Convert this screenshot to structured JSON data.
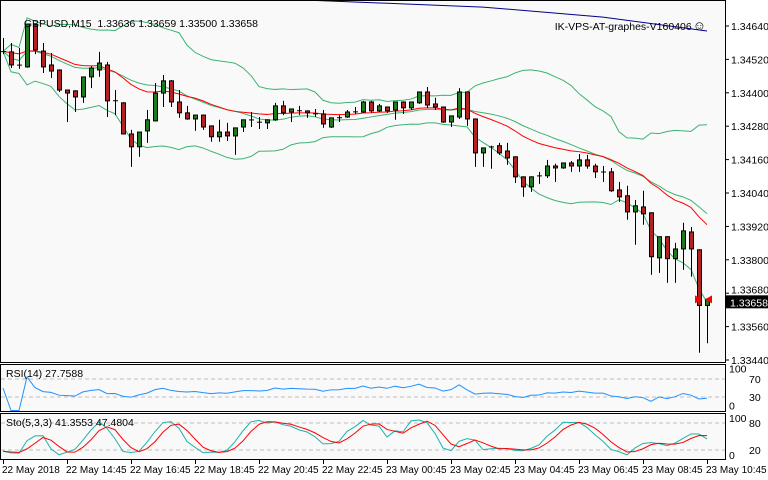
{
  "header": {
    "symbol": "GBPUSD,M15",
    "ohlc": "1.33636 1.33659 1.33500 1.33658",
    "expert": "IK-VPS-AT-graphes-V160406",
    "expert_icon": "smiley-icon"
  },
  "rsi_panel": {
    "label": "RSI(14) 27.7588",
    "levels": [
      70,
      30
    ],
    "scale_labels": [
      "100",
      "70",
      "30",
      "0"
    ]
  },
  "sto_panel": {
    "label": "Sto(5,3,3) 41.3553 47.4804",
    "levels": [
      80,
      20
    ],
    "scale_labels": [
      "100",
      "80",
      "20",
      "0"
    ]
  },
  "colors": {
    "bull": "#1f7a1f",
    "bear": "#b22222",
    "bands": "#3cb371",
    "ma": "#ff0000",
    "ma_long": "#00008b",
    "rsi": "#1e90ff",
    "sto_main": "#20b2aa",
    "sto_signal": "#ff0000",
    "background": "#f9f9f9"
  },
  "chart_data": {
    "type": "candlestick",
    "symbol": "GBPUSD",
    "timeframe": "M15",
    "start_time": "22 May 12:45",
    "interval_minutes": 15,
    "ylim": [
      1.3344,
      1.3464
    ],
    "y_ticks": [
      "1.34640",
      "1.34520",
      "1.34400",
      "1.34280",
      "1.34160",
      "1.34040",
      "1.33920",
      "1.33800",
      "1.33680",
      "1.33560",
      "1.33440"
    ],
    "last_price": "1.33658",
    "x_ticks": [
      "22 May 2018",
      "22 May 14:45",
      "22 May 16:45",
      "22 May 18:45",
      "22 May 20:45",
      "22 May 22:45",
      "23 May 00:45",
      "23 May 02:45",
      "23 May 04:45",
      "23 May 06:45",
      "23 May 08:45",
      "23 May 10:45"
    ],
    "x_tick_every_candles": 8,
    "candles_ohlc": [
      [
        1.34547,
        1.34597,
        1.34539,
        1.34549
      ],
      [
        1.34547,
        1.34579,
        1.34489,
        1.345
      ],
      [
        1.345,
        1.34561,
        1.34486,
        1.34499
      ],
      [
        1.34493,
        1.34647,
        1.3449,
        1.34647
      ],
      [
        1.34645,
        1.34647,
        1.34539,
        1.34554
      ],
      [
        1.3455,
        1.34579,
        1.34471,
        1.34493
      ],
      [
        1.345,
        1.34543,
        1.34453,
        1.34478
      ],
      [
        1.34482,
        1.34484,
        1.34403,
        1.3441
      ],
      [
        1.3441,
        1.34412,
        1.34295,
        1.34399
      ],
      [
        1.34407,
        1.34409,
        1.34331,
        1.34385
      ],
      [
        1.34385,
        1.34457,
        1.34364,
        1.34457
      ],
      [
        1.34457,
        1.34496,
        1.34417,
        1.34489
      ],
      [
        1.34482,
        1.34547,
        1.34457,
        1.34507
      ],
      [
        1.345,
        1.34511,
        1.34313,
        1.34371
      ],
      [
        1.34371,
        1.3441,
        1.3432,
        1.34372
      ],
      [
        1.34364,
        1.34366,
        1.3425,
        1.34252
      ],
      [
        1.34252,
        1.34267,
        1.34134,
        1.34206
      ],
      [
        1.34206,
        1.34259,
        1.3417,
        1.34259
      ],
      [
        1.34263,
        1.34338,
        1.3422,
        1.34303
      ],
      [
        1.34299,
        1.34435,
        1.34297,
        1.34399
      ],
      [
        1.34399,
        1.34464,
        1.34349,
        1.34443
      ],
      [
        1.34443,
        1.34446,
        1.34349,
        1.34367
      ],
      [
        1.34367,
        1.3441,
        1.3431,
        1.34328
      ],
      [
        1.34328,
        1.34353,
        1.34303,
        1.34306
      ],
      [
        1.34306,
        1.3432,
        1.34263,
        1.3432
      ],
      [
        1.3432,
        1.34322,
        1.34267,
        1.34277
      ],
      [
        1.34281,
        1.34283,
        1.34224,
        1.34242
      ],
      [
        1.34242,
        1.34303,
        1.34224,
        1.34259
      ],
      [
        1.34259,
        1.34292,
        1.34227,
        1.34245
      ],
      [
        1.34245,
        1.34274,
        1.34177,
        1.34274
      ],
      [
        1.34277,
        1.34303,
        1.34259,
        1.34303
      ],
      [
        1.34303,
        1.34331,
        1.34277,
        1.34302
      ],
      [
        1.34295,
        1.34313,
        1.3427,
        1.34294
      ],
      [
        1.34292,
        1.34305,
        1.3427,
        1.34303
      ],
      [
        1.34303,
        1.34364,
        1.34299,
        1.34353
      ],
      [
        1.34353,
        1.34371,
        1.3432,
        1.34328
      ],
      [
        1.34331,
        1.34342,
        1.34295,
        1.34342
      ],
      [
        1.34335,
        1.34353,
        1.3432,
        1.34336
      ],
      [
        1.34335,
        1.34337,
        1.3431,
        1.34328
      ],
      [
        1.34324,
        1.34342,
        1.34313,
        1.34325
      ],
      [
        1.34324,
        1.34338,
        1.34274,
        1.34288
      ],
      [
        1.34277,
        1.3431,
        1.34274,
        1.3431
      ],
      [
        1.3431,
        1.3432,
        1.34295,
        1.34311
      ],
      [
        1.34313,
        1.34338,
        1.3431,
        1.34331
      ],
      [
        1.34331,
        1.34349,
        1.34324,
        1.34332
      ],
      [
        1.34331,
        1.34371,
        1.34328,
        1.34367
      ],
      [
        1.34367,
        1.34371,
        1.34328,
        1.34335
      ],
      [
        1.34335,
        1.3436,
        1.34331,
        1.34353
      ],
      [
        1.34349,
        1.34351,
        1.34328,
        1.34335
      ],
      [
        1.34338,
        1.34367,
        1.34303,
        1.34367
      ],
      [
        1.34367,
        1.34369,
        1.34324,
        1.34346
      ],
      [
        1.34346,
        1.34367,
        1.34338,
        1.34367
      ],
      [
        1.34364,
        1.34403,
        1.3436,
        1.34403
      ],
      [
        1.34403,
        1.34421,
        1.34346,
        1.34356
      ],
      [
        1.3436,
        1.34382,
        1.34338,
        1.34349
      ],
      [
        1.34349,
        1.34351,
        1.34292,
        1.34295
      ],
      [
        1.34295,
        1.34317,
        1.34277,
        1.34317
      ],
      [
        1.34313,
        1.34417,
        1.34306,
        1.34403
      ],
      [
        1.34403,
        1.34405,
        1.34281,
        1.34306
      ],
      [
        1.34306,
        1.34308,
        1.34134,
        1.34184
      ],
      [
        1.34184,
        1.34202,
        1.34134,
        1.34202
      ],
      [
        1.34206,
        1.3421,
        1.34127,
        1.34205
      ],
      [
        1.3421,
        1.3422,
        1.34177,
        1.34184
      ],
      [
        1.34191,
        1.3422,
        1.34141,
        1.34166
      ],
      [
        1.3417,
        1.34172,
        1.34076,
        1.34098
      ],
      [
        1.34098,
        1.341,
        1.34026,
        1.34062
      ],
      [
        1.34062,
        1.341,
        1.34044,
        1.34098
      ],
      [
        1.34102,
        1.34116,
        1.34073,
        1.34101
      ],
      [
        1.34102,
        1.34159,
        1.34094,
        1.34137
      ],
      [
        1.34137,
        1.34145,
        1.3408,
        1.3413
      ],
      [
        1.3413,
        1.34148,
        1.34127,
        1.34148
      ],
      [
        1.34148,
        1.34155,
        1.34116,
        1.34137
      ],
      [
        1.34137,
        1.3418,
        1.34116,
        1.34159
      ],
      [
        1.34159,
        1.34177,
        1.34127,
        1.34137
      ],
      [
        1.34137,
        1.34145,
        1.34094,
        1.34116
      ],
      [
        1.34116,
        1.34137,
        1.3408,
        1.34115
      ],
      [
        1.34116,
        1.3413,
        1.34044,
        1.34048
      ],
      [
        1.34051,
        1.3408,
        1.34008,
        1.34026
      ],
      [
        1.3403,
        1.34066,
        1.33944,
        1.33972
      ],
      [
        1.33972,
        1.34015,
        1.33854,
        1.33994
      ],
      [
        1.3399,
        1.34048,
        1.33926,
        1.33965
      ],
      [
        1.33969,
        1.33971,
        1.33746,
        1.33811
      ],
      [
        1.33807,
        1.33883,
        1.33753,
        1.33883
      ],
      [
        1.33883,
        1.33885,
        1.33717,
        1.33804
      ],
      [
        1.33804,
        1.33861,
        1.33717,
        1.33839
      ],
      [
        1.33839,
        1.33933,
        1.33764,
        1.33904
      ],
      [
        1.339,
        1.33918,
        1.33739,
        1.33839
      ],
      [
        1.33836,
        1.33838,
        1.33466,
        1.33636
      ],
      [
        1.33636,
        1.33659,
        1.335,
        1.33658
      ]
    ],
    "overlays": [
      "bollinger-bands",
      "moving-average"
    ],
    "ma_long": {
      "times": [
        "22 May 22:15",
        "23 May 03:45",
        "23 May 07:30",
        "23 May 10:45"
      ],
      "values": [
        1.34733,
        1.34708,
        1.34672,
        1.34622
      ]
    },
    "indicators": [
      "RSI(14)",
      "Sto(5,3,3)"
    ],
    "grid": false
  }
}
